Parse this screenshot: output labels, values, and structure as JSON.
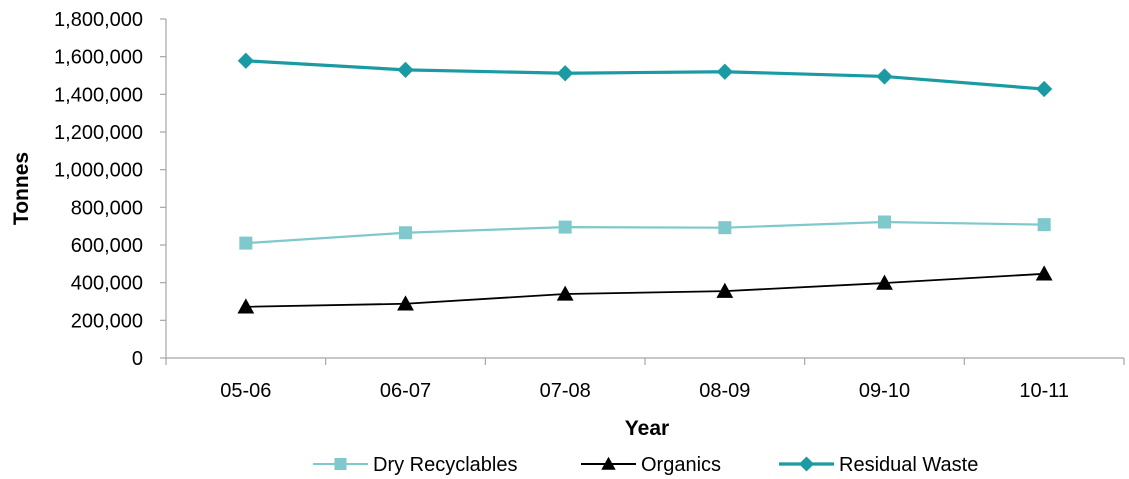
{
  "chart_data": {
    "type": "line",
    "xlabel": "Year",
    "ylabel": "Tonnes",
    "ylim": [
      0,
      1800000
    ],
    "yticks": [
      0,
      200000,
      400000,
      600000,
      800000,
      1000000,
      1200000,
      1400000,
      1600000,
      1800000
    ],
    "ytick_labels": [
      "0",
      "200,000",
      "400,000",
      "600,000",
      "800,000",
      "1,000,000",
      "1,200,000",
      "1,400,000",
      "1,600,000",
      "1,800,000"
    ],
    "categories": [
      "05-06",
      "06-07",
      "07-08",
      "08-09",
      "09-10",
      "10-11"
    ],
    "grid": false,
    "legend_position": "bottom",
    "series": [
      {
        "name": "Dry Recyclables",
        "color": "#7fc8cb",
        "marker": "square",
        "values": [
          610000,
          665000,
          695000,
          692000,
          722000,
          708000
        ]
      },
      {
        "name": "Organics",
        "color": "#000000",
        "marker": "triangle",
        "values": [
          272000,
          288000,
          340000,
          355000,
          398000,
          447000
        ]
      },
      {
        "name": "Residual Waste",
        "color": "#1a9ba3",
        "marker": "diamond",
        "values": [
          1578000,
          1530000,
          1512000,
          1520000,
          1495000,
          1428000
        ]
      }
    ]
  }
}
